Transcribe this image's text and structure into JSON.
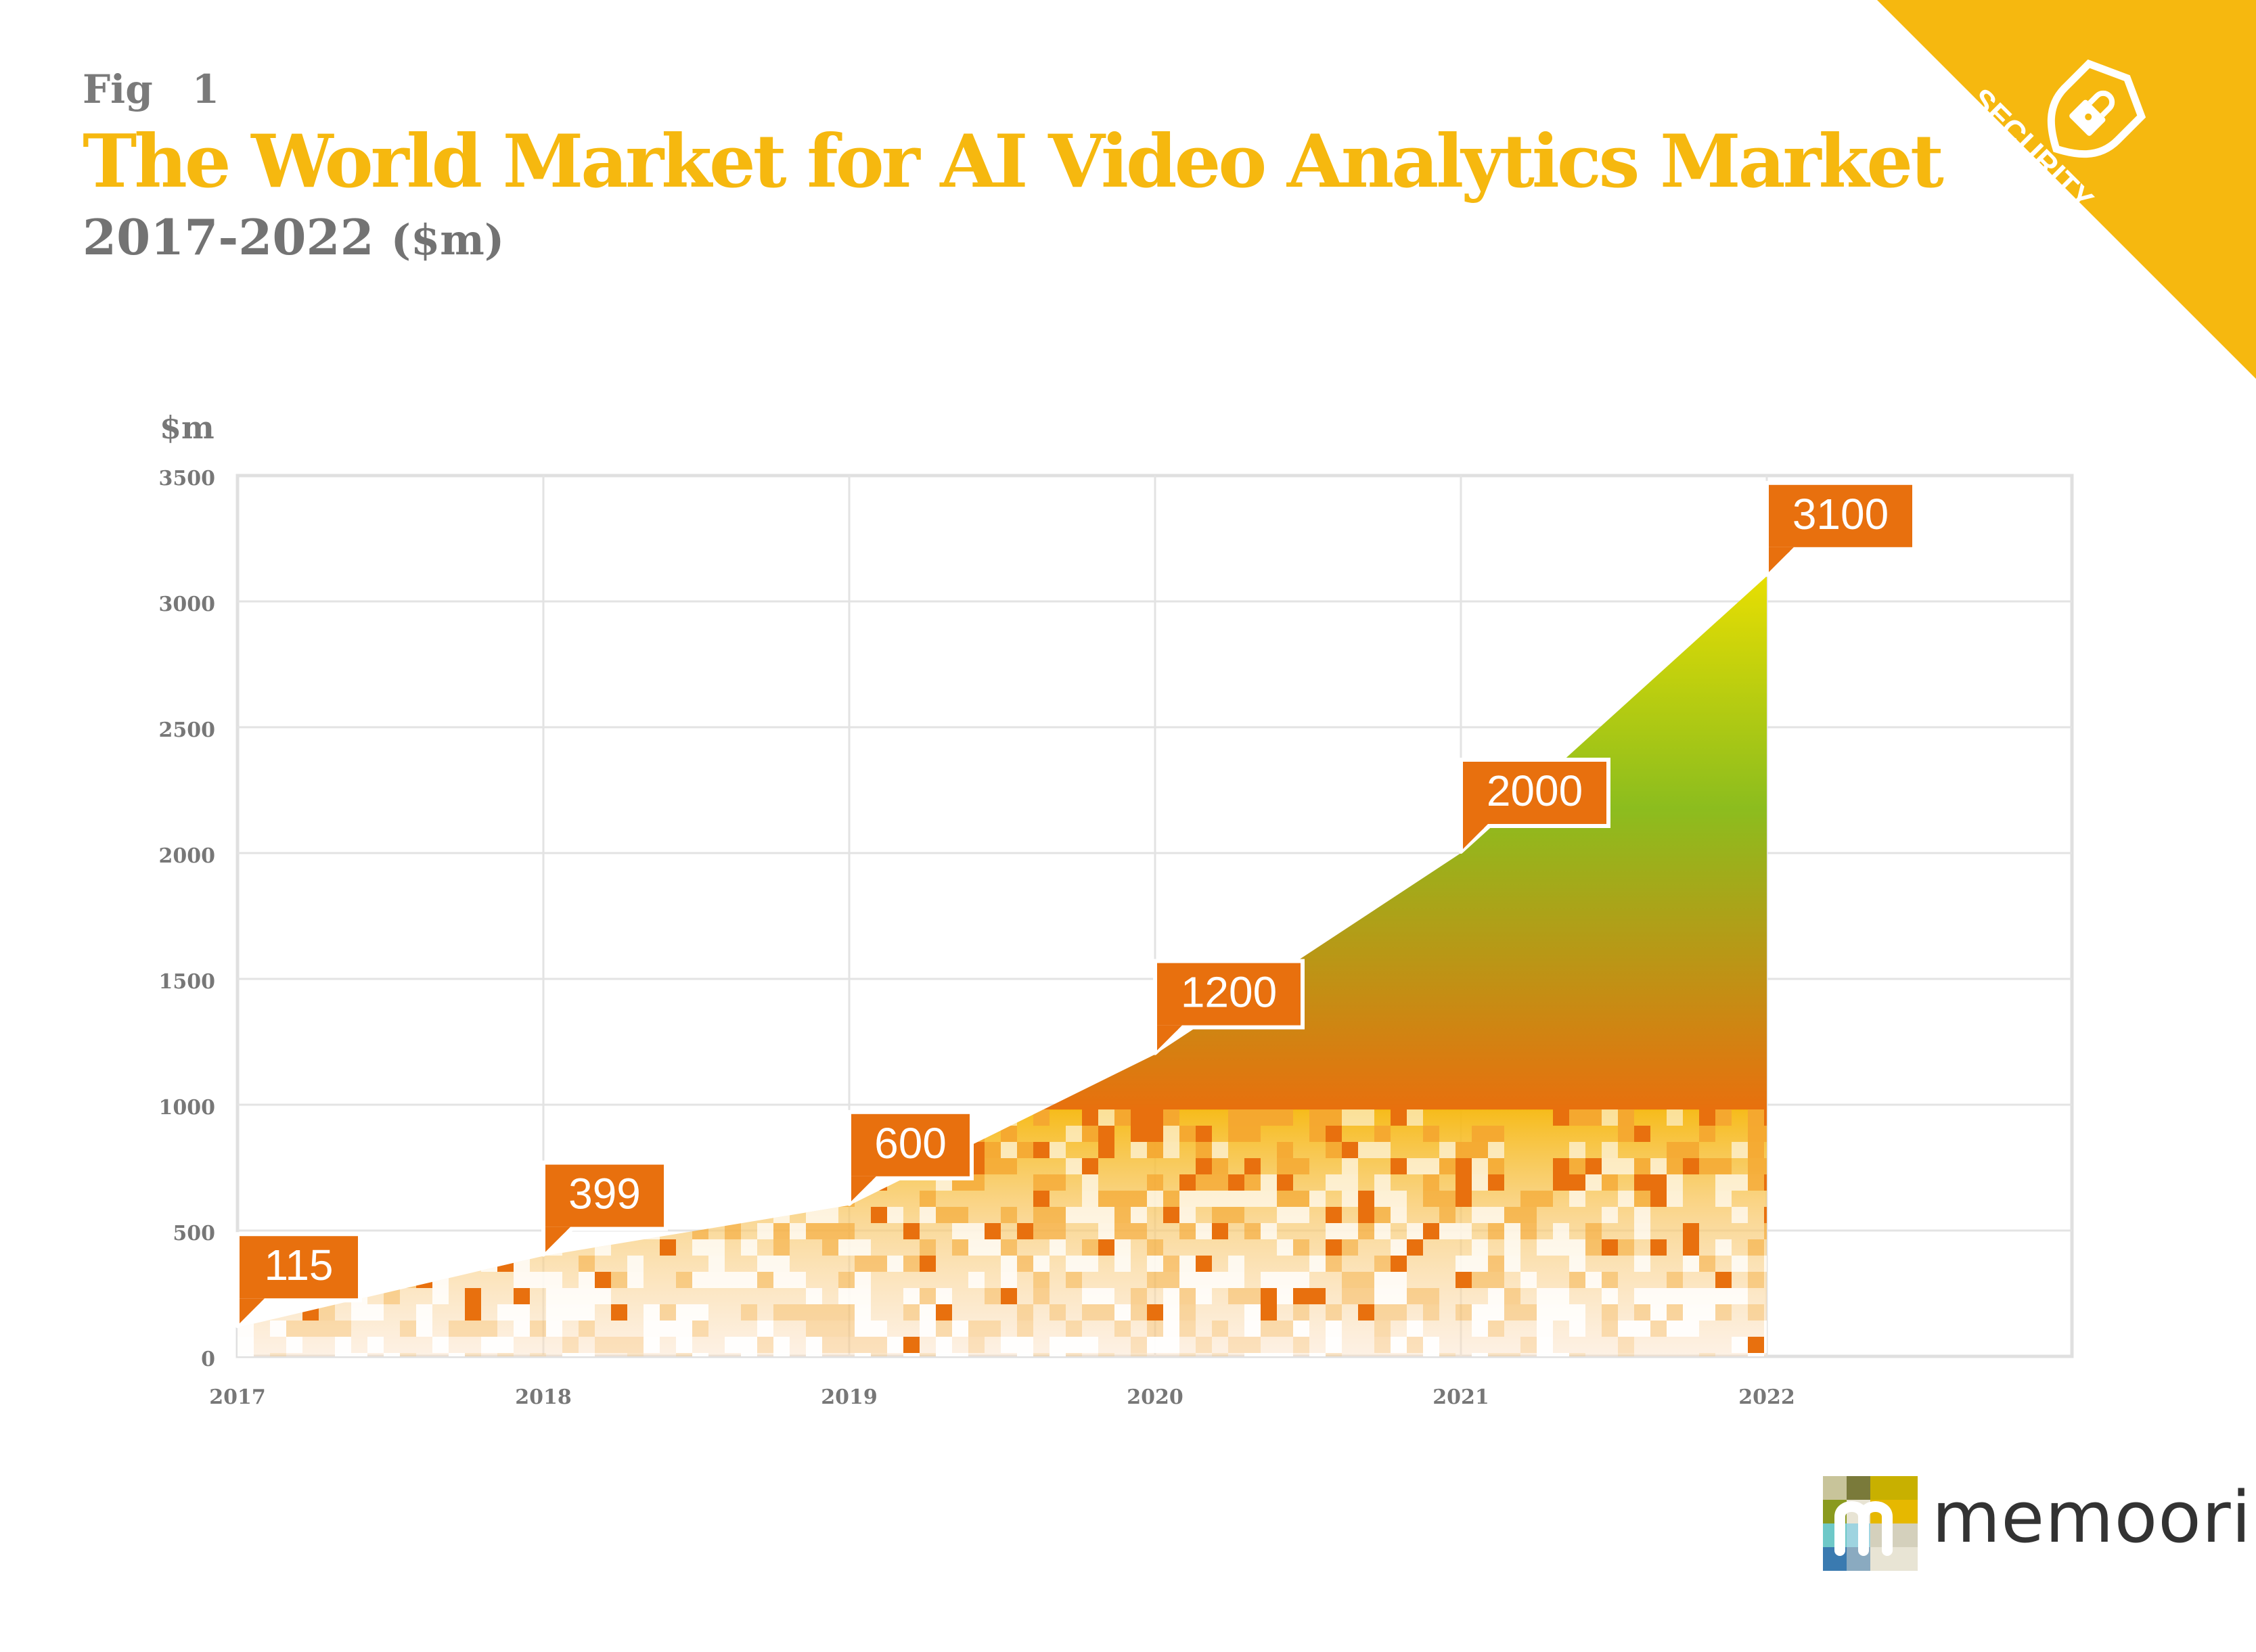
{
  "header": {
    "fig_label": "Fig",
    "fig_number": "1",
    "title": "The World Market for AI Video Analytics Market",
    "subtitle_years": "2017-2022",
    "subtitle_unit": "($m)"
  },
  "badge": {
    "label": "SECURITY",
    "color": "#f6b80f",
    "icon": "shield-lock-icon"
  },
  "brand": {
    "name": "memoori",
    "logo_icon": "memoori-logo-icon"
  },
  "colors": {
    "label_bg": "#e8700e",
    "grid": "#dcdcdc",
    "axis_text": "#777777",
    "title": "#f6b80f"
  },
  "chart_data": {
    "type": "area",
    "x": [
      2017,
      2018,
      2019,
      2020,
      2021,
      2022
    ],
    "values": [
      115,
      399,
      600,
      1200,
      2000,
      3100
    ],
    "data_labels": [
      "115",
      "399",
      "600",
      "1200",
      "2000",
      "3100"
    ],
    "ylabel": "$m",
    "yticks": [
      0,
      500,
      1000,
      1500,
      2000,
      2500,
      3000,
      3500
    ],
    "xticks": [
      "2017",
      "2018",
      "2019",
      "2020",
      "2021",
      "2022"
    ],
    "ylim": [
      0,
      3500
    ],
    "grid": true,
    "fill_gradient": [
      "#ede000",
      "#8cbd1e",
      "#e8700e"
    ]
  }
}
